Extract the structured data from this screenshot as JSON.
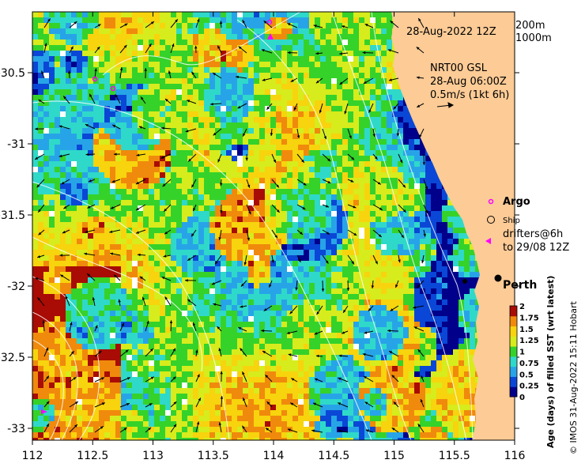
{
  "map": {
    "date_label": "28-Aug-2022 12Z",
    "contour_labels": [
      "200m",
      "1000m"
    ],
    "current_source": "NRT00 GSL",
    "current_time": "28-Aug 06:00Z",
    "current_scale": "0.5m/s (1kt 6h)",
    "legend": {
      "argo": "Argo",
      "ship": "Ship",
      "drifters_line1": "drifters@6h",
      "drifters_line2": "to 29/08 12Z"
    },
    "city": "Perth",
    "colorbar": {
      "title": "Age (days) of filled SST (wrt latest)",
      "ticks": [
        "2",
        "1.75",
        "1.5",
        "1.25",
        "1",
        "0.75",
        "0.5",
        "0.25",
        "0"
      ]
    },
    "copyright": "© IMOS 31-Aug-2022 15:11 Hobart",
    "x_ticks": [
      "112",
      "112.5",
      "113",
      "113.5",
      "114",
      "114.5",
      "115",
      "115.5",
      "116"
    ],
    "y_ticks": [
      "-30.5",
      "-31",
      "-31.5",
      "-32",
      "-32.5",
      "-33"
    ],
    "colors": {
      "land": "#fccb96",
      "age_0": "#00008b",
      "age_0_25": "#0a47d6",
      "age_0_5": "#27a4e8",
      "age_0_75": "#2fd9c9",
      "age_1": "#35d22a",
      "age_1_25": "#d7ec1c",
      "age_1_5": "#f7d40d",
      "age_1_75": "#f08a0c",
      "age_2": "#a80c05",
      "argo_marker": "#ff00ff"
    }
  }
}
